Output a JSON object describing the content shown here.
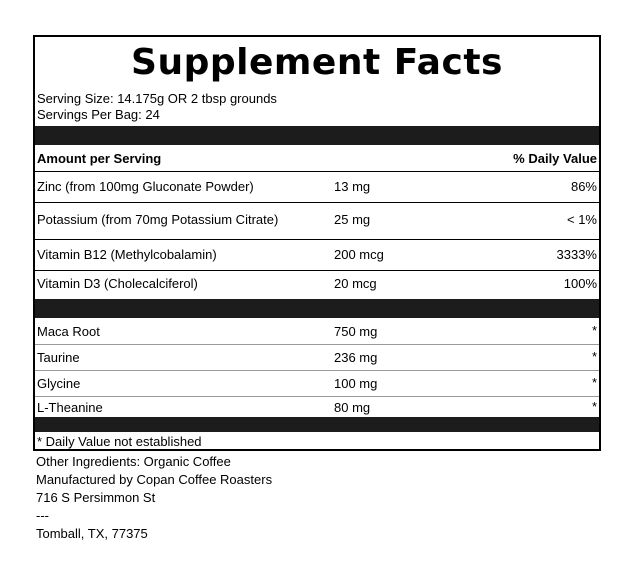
{
  "title": "Supplement Facts",
  "serving_size": "Serving Size: 14.175g OR 2 tbsp grounds",
  "servings_per_bag": "Servings Per Bag: 24",
  "header": {
    "left": "Amount per Serving",
    "right": "% Daily Value"
  },
  "nutrients": [
    {
      "name": "Zinc (from 100mg Gluconate Powder)",
      "amount": "13 mg",
      "dv": "86%"
    },
    {
      "name": "Potassium (from 70mg Potassium Citrate)",
      "amount": "25 mg",
      "dv": "< 1%"
    },
    {
      "name": "Vitamin B12 (Methylcobalamin)",
      "amount": "200 mcg",
      "dv": "3333%"
    },
    {
      "name": "Vitamin D3 (Cholecalciferol)",
      "amount": "20 mcg",
      "dv": "100%"
    }
  ],
  "other_items": [
    {
      "name": "Maca Root",
      "amount": "750 mg",
      "dv": "*"
    },
    {
      "name": "Taurine",
      "amount": "236 mg",
      "dv": "*"
    },
    {
      "name": "Glycine",
      "amount": "100 mg",
      "dv": "*"
    },
    {
      "name": "L-Theanine",
      "amount": "80 mg",
      "dv": "*"
    }
  ],
  "footnote": "* Daily Value not established",
  "other_text": [
    "Other Ingredients: Organic Coffee",
    "Manufactured by Copan Coffee Roasters",
    "716 S Persimmon St",
    "---",
    "Tomball, TX, 77375"
  ]
}
